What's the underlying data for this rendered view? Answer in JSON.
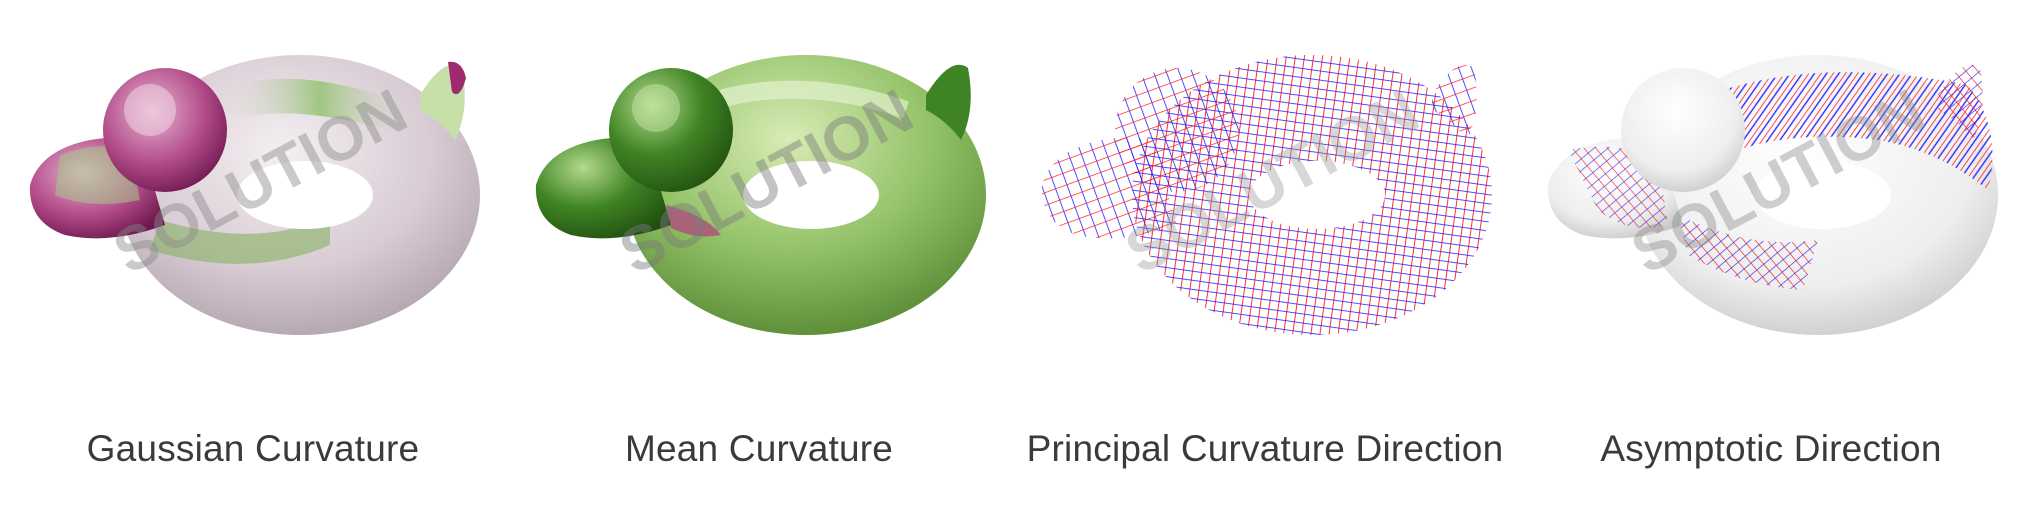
{
  "watermark": "SOLUTION",
  "panels": [
    {
      "id": "gaussian",
      "caption": "Gaussian Curvature",
      "shading": "magenta-green"
    },
    {
      "id": "mean",
      "caption": "Mean Curvature",
      "shading": "green"
    },
    {
      "id": "principal",
      "caption": "Principal Curvature Direction",
      "shading": "red-blue-wireframe"
    },
    {
      "id": "asymptotic",
      "caption": "Asymptotic Direction",
      "shading": "white-with-direction-lines"
    }
  ],
  "colors": {
    "magenta": "#8b1a5e",
    "green": "#4f8f2a",
    "red": "#ff1a1a",
    "blue": "#2222ff",
    "caption": "#3a3a3a"
  }
}
